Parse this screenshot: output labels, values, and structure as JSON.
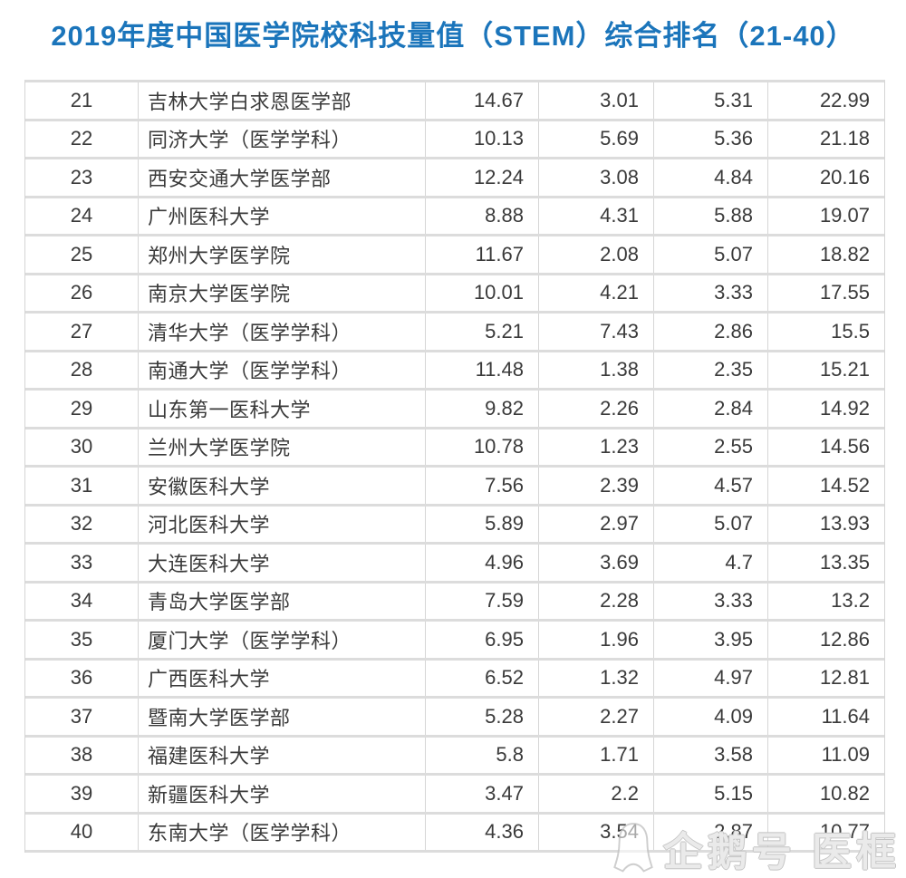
{
  "title": "2019年度中国医学院校科技量值（STEM）综合排名（21-40）",
  "colors": {
    "title_blue": "#1b75bb",
    "body_text": "#3a3a3a",
    "gridline": "#d6d6d6",
    "watermark_gray": "#c3c3c3"
  },
  "watermark": {
    "icon": "penguin-icon",
    "text": "企鹅号 医框"
  },
  "chart_data": {
    "type": "table",
    "title": "2019年度中国医学院校科技量值（STEM）综合排名（21-40）",
    "header_visible": false,
    "grid": true,
    "rows": [
      [
        "21",
        "吉林大学白求恩医学部",
        "14.67",
        "3.01",
        "5.31",
        "22.99"
      ],
      [
        "22",
        "同济大学（医学学科）",
        "10.13",
        "5.69",
        "5.36",
        "21.18"
      ],
      [
        "23",
        "西安交通大学医学部",
        "12.24",
        "3.08",
        "4.84",
        "20.16"
      ],
      [
        "24",
        "广州医科大学",
        "8.88",
        "4.31",
        "5.88",
        "19.07"
      ],
      [
        "25",
        "郑州大学医学院",
        "11.67",
        "2.08",
        "5.07",
        "18.82"
      ],
      [
        "26",
        "南京大学医学院",
        "10.01",
        "4.21",
        "3.33",
        "17.55"
      ],
      [
        "27",
        "清华大学（医学学科）",
        "5.21",
        "7.43",
        "2.86",
        "15.5"
      ],
      [
        "28",
        "南通大学（医学学科）",
        "11.48",
        "1.38",
        "2.35",
        "15.21"
      ],
      [
        "29",
        "山东第一医科大学",
        "9.82",
        "2.26",
        "2.84",
        "14.92"
      ],
      [
        "30",
        "兰州大学医学院",
        "10.78",
        "1.23",
        "2.55",
        "14.56"
      ],
      [
        "31",
        "安徽医科大学",
        "7.56",
        "2.39",
        "4.57",
        "14.52"
      ],
      [
        "32",
        "河北医科大学",
        "5.89",
        "2.97",
        "5.07",
        "13.93"
      ],
      [
        "33",
        "大连医科大学",
        "4.96",
        "3.69",
        "4.7",
        "13.35"
      ],
      [
        "34",
        "青岛大学医学部",
        "7.59",
        "2.28",
        "3.33",
        "13.2"
      ],
      [
        "35",
        "厦门大学（医学学科）",
        "6.95",
        "1.96",
        "3.95",
        "12.86"
      ],
      [
        "36",
        "广西医科大学",
        "6.52",
        "1.32",
        "4.97",
        "12.81"
      ],
      [
        "37",
        "暨南大学医学部",
        "5.28",
        "2.27",
        "4.09",
        "11.64"
      ],
      [
        "38",
        "福建医科大学",
        "5.8",
        "1.71",
        "3.58",
        "11.09"
      ],
      [
        "39",
        "新疆医科大学",
        "3.47",
        "2.2",
        "5.15",
        "10.82"
      ],
      [
        "40",
        "东南大学（医学学科）",
        "4.36",
        "3.54",
        "2.87",
        "10.77"
      ]
    ]
  }
}
